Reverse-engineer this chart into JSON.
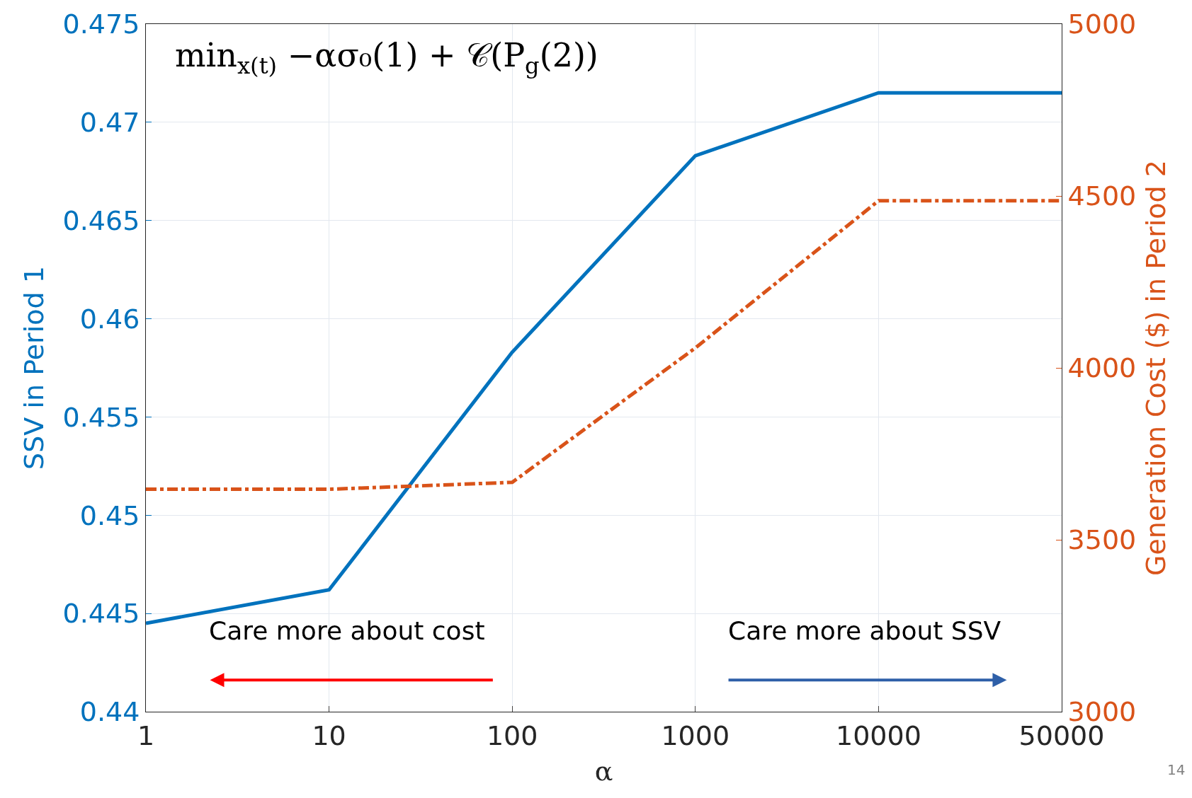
{
  "chart_data": {
    "type": "line",
    "categories": [
      "1",
      "10",
      "100",
      "1000",
      "10000",
      "50000"
    ],
    "xlabel": "α",
    "ylabel": "SSV in Period 1",
    "y2label": "Generation Cost ($) in Period 2",
    "series": [
      {
        "color": "#0072bd",
        "values": [
          0.4445,
          0.4462,
          0.4583,
          0.4683,
          0.4715,
          0.4715
        ],
        "line_style": "solid"
      },
      {
        "color": "#d95319",
        "values": [
          3647,
          3647,
          3667,
          4058,
          4486,
          4486
        ],
        "axis": "y2",
        "line_style": "dashdot"
      }
    ],
    "ylim": [
      0.44,
      0.475
    ],
    "yticks": [
      0.44,
      0.445,
      0.45,
      0.455,
      0.46,
      0.465,
      0.47,
      0.475
    ],
    "y2lim": [
      3000,
      5000
    ],
    "y2ticks": [
      3000,
      3500,
      4000,
      4500,
      5000
    ],
    "grid": true,
    "marker": "none",
    "annotations": [
      "min$_{x(t)}$ −ασ₀(1) + 𝒞(P$_{g}$(2))",
      "Care more about cost",
      "Care more about SSV",
      "14"
    ]
  }
}
